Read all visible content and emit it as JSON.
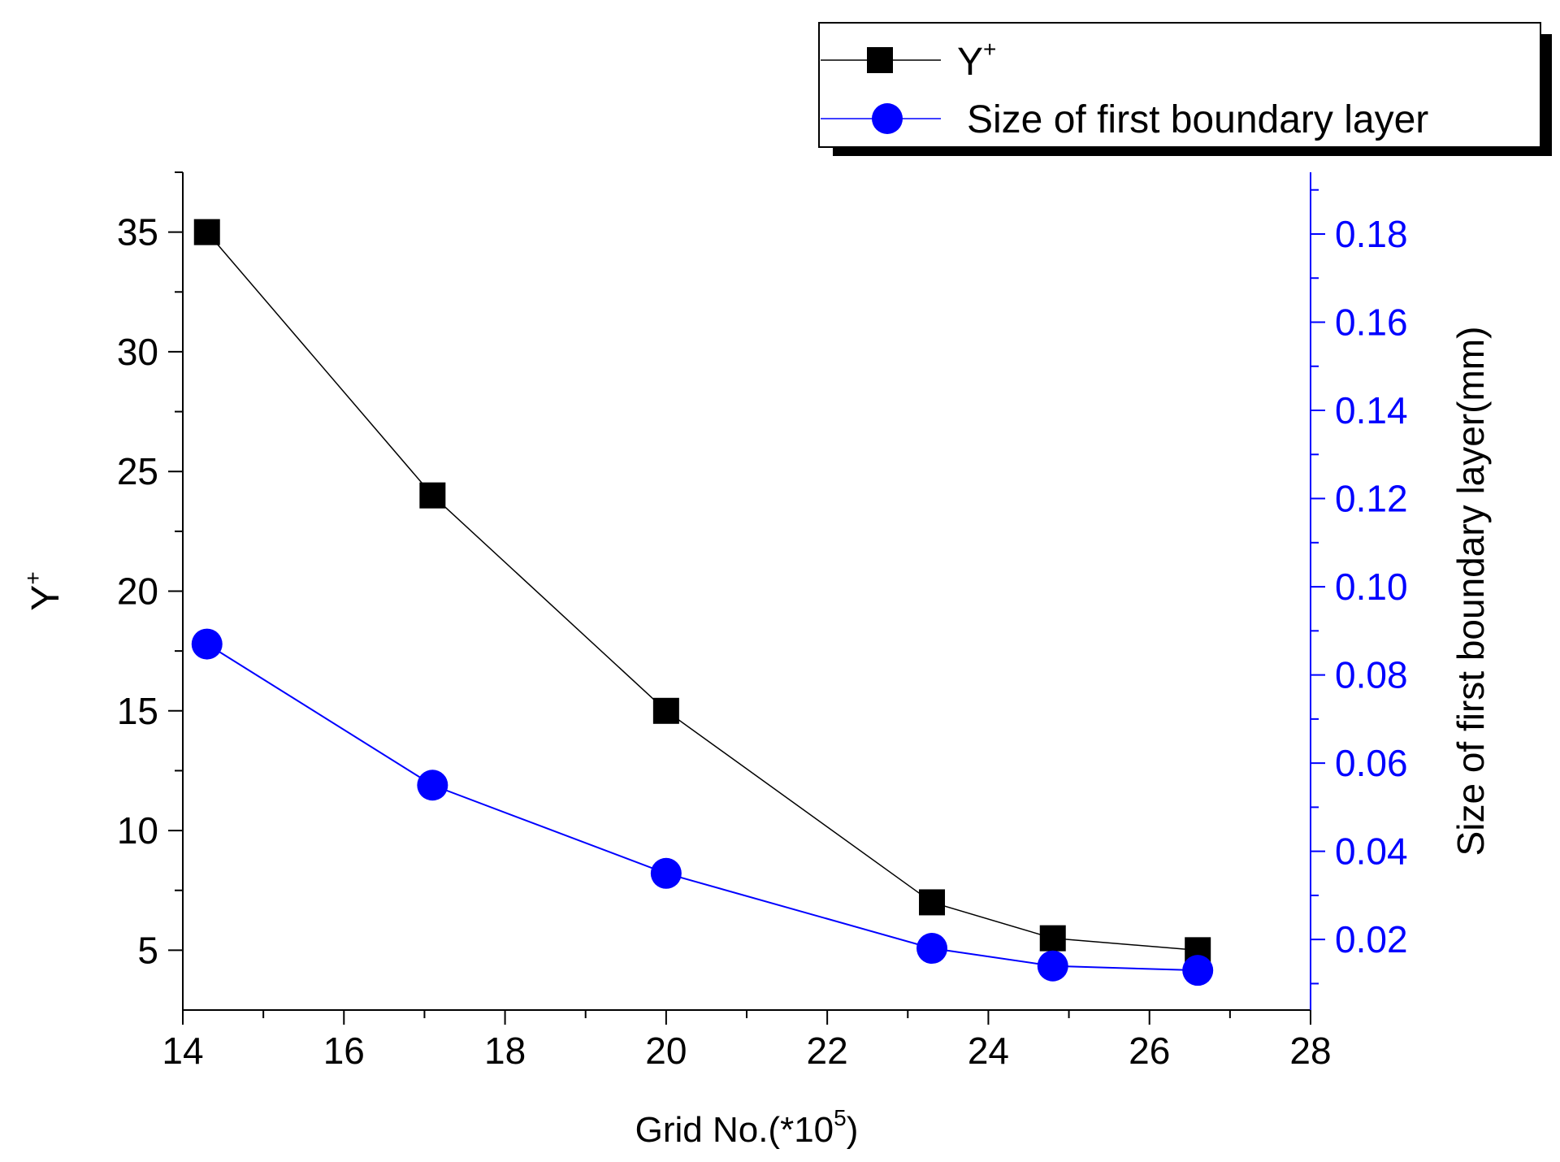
{
  "chart_data": {
    "type": "line",
    "x": [
      14.3,
      17.1,
      20.0,
      23.3,
      24.8,
      26.6
    ],
    "series": [
      {
        "name": "Y",
        "name_sup": "+",
        "axis": "left",
        "marker": "square",
        "color": "#000000",
        "values": [
          35.0,
          24.0,
          15.0,
          7.0,
          5.5,
          5.0
        ]
      },
      {
        "name": "Size of first boundary layer",
        "axis": "right",
        "marker": "circle",
        "color": "#0000ff",
        "values": [
          0.087,
          0.055,
          0.035,
          0.018,
          0.014,
          0.013
        ]
      }
    ],
    "xlabel": "Grid No.(*10",
    "xlabel_sup": "5",
    "xlabel_end": ")",
    "ylabel": "Y",
    "ylabel_sup": "+",
    "y2label": "Size of first boundary layer(mm)",
    "xlim": [
      14,
      28
    ],
    "ylim": [
      2.5,
      37.5
    ],
    "y2lim": [
      0.004,
      0.194
    ],
    "xticks": [
      "14",
      "16",
      "18",
      "20",
      "22",
      "24",
      "26",
      "28"
    ],
    "yticks": [
      "5",
      "10",
      "15",
      "20",
      "25",
      "30",
      "35"
    ],
    "y2ticks": [
      "0.02",
      "0.04",
      "0.06",
      "0.08",
      "0.10",
      "0.12",
      "0.14",
      "0.16",
      "0.18"
    ],
    "legend_position": "top-right",
    "grid": false
  }
}
